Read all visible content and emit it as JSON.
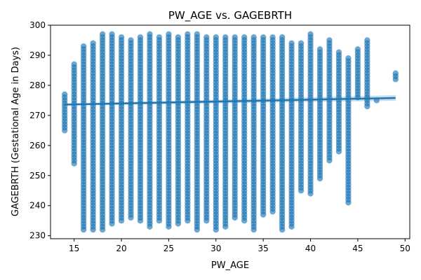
{
  "chart_data": {
    "type": "scatter",
    "title": "PW_AGE vs. GAGEBRTH",
    "xlabel": "PW_AGE",
    "ylabel": "GAGEBRTH (Gestational Age in Days)",
    "xlim": [
      12.5,
      50.5
    ],
    "ylim": [
      229,
      300
    ],
    "xticks": [
      15,
      20,
      25,
      30,
      35,
      40,
      45,
      50
    ],
    "yticks": [
      230,
      240,
      250,
      260,
      270,
      280,
      290,
      300
    ],
    "grid": false,
    "point_color": "#1f77b4",
    "point_opacity": 0.65,
    "columns": [
      {
        "x": 14,
        "ymin": 265,
        "ymax": 277
      },
      {
        "x": 15,
        "ymin": 254,
        "ymax": 287
      },
      {
        "x": 16,
        "ymin": 232,
        "ymax": 293
      },
      {
        "x": 17,
        "ymin": 232,
        "ymax": 294
      },
      {
        "x": 18,
        "ymin": 232,
        "ymax": 297
      },
      {
        "x": 19,
        "ymin": 234,
        "ymax": 297
      },
      {
        "x": 20,
        "ymin": 235,
        "ymax": 296
      },
      {
        "x": 21,
        "ymin": 236,
        "ymax": 295
      },
      {
        "x": 22,
        "ymin": 235,
        "ymax": 296
      },
      {
        "x": 23,
        "ymin": 233,
        "ymax": 297
      },
      {
        "x": 24,
        "ymin": 235,
        "ymax": 296
      },
      {
        "x": 25,
        "ymin": 233,
        "ymax": 297
      },
      {
        "x": 26,
        "ymin": 234,
        "ymax": 296
      },
      {
        "x": 27,
        "ymin": 235,
        "ymax": 297
      },
      {
        "x": 28,
        "ymin": 232,
        "ymax": 297
      },
      {
        "x": 29,
        "ymin": 235,
        "ymax": 296
      },
      {
        "x": 30,
        "ymin": 232,
        "ymax": 296
      },
      {
        "x": 31,
        "ymin": 233,
        "ymax": 296
      },
      {
        "x": 32,
        "ymin": 236,
        "ymax": 296
      },
      {
        "x": 33,
        "ymin": 235,
        "ymax": 296
      },
      {
        "x": 34,
        "ymin": 232,
        "ymax": 296
      },
      {
        "x": 35,
        "ymin": 237,
        "ymax": 296
      },
      {
        "x": 36,
        "ymin": 238,
        "ymax": 296
      },
      {
        "x": 37,
        "ymin": 232,
        "ymax": 296
      },
      {
        "x": 38,
        "ymin": 233,
        "ymax": 294
      },
      {
        "x": 39,
        "ymin": 245,
        "ymax": 294
      },
      {
        "x": 40,
        "ymin": 244,
        "ymax": 297
      },
      {
        "x": 41,
        "ymin": 249,
        "ymax": 292
      },
      {
        "x": 42,
        "ymin": 255,
        "ymax": 295
      },
      {
        "x": 43,
        "ymin": 258,
        "ymax": 291
      },
      {
        "x": 44,
        "ymin": 241,
        "ymax": 289
      },
      {
        "x": 45,
        "ymin": 276,
        "ymax": 292
      },
      {
        "x": 46,
        "ymin": 273,
        "ymax": 295
      },
      {
        "x": 47,
        "ymin": 275,
        "ymax": 275
      },
      {
        "x": 49,
        "ymin": 282,
        "ymax": 284
      }
    ],
    "regression": {
      "x": [
        14,
        49
      ],
      "y": [
        273.6,
        275.8
      ],
      "color": "#1f77b4"
    }
  }
}
